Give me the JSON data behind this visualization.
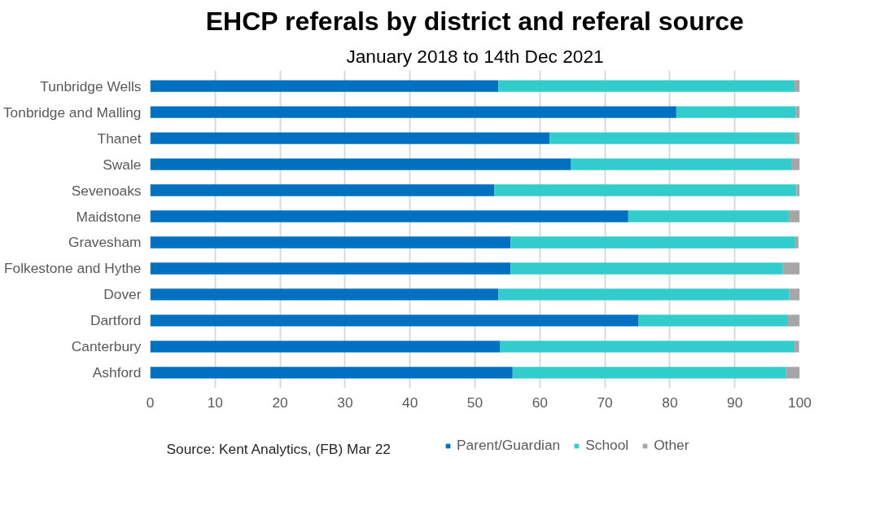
{
  "chart_data": {
    "type": "bar",
    "orientation": "horizontal",
    "stacked": true,
    "title": "EHCP referals by district and referal source",
    "subtitle": "January 2018 to 14th Dec 2021",
    "categories": [
      "Tunbridge Wells",
      "Tonbridge and Malling",
      "Thanet",
      "Swale",
      "Sevenoaks",
      "Maidstone",
      "Gravesham",
      "Folkestone and Hythe",
      "Dover",
      "Dartford",
      "Canterbury",
      "Ashford"
    ],
    "series": [
      {
        "name": "Parent/Guardian",
        "color": "#0070c0",
        "values": [
          53.6,
          81.0,
          61.5,
          64.8,
          53.0,
          73.6,
          55.5,
          55.5,
          53.6,
          75.2,
          53.9,
          55.8
        ]
      },
      {
        "name": "School",
        "color": "#33cccc",
        "values": [
          45.6,
          18.4,
          37.8,
          34.0,
          46.5,
          24.7,
          43.8,
          41.9,
          44.8,
          23.0,
          45.3,
          42.1
        ]
      },
      {
        "name": "Other",
        "color": "#a6a6a6",
        "values": [
          0.8,
          0.6,
          0.7,
          1.2,
          0.5,
          1.7,
          0.5,
          2.6,
          1.6,
          1.8,
          0.7,
          2.1
        ]
      }
    ],
    "xlim": [
      0,
      100
    ],
    "xticks": [
      0,
      10,
      20,
      30,
      40,
      50,
      60,
      70,
      80,
      90,
      100
    ],
    "grid": "x",
    "legend": "bottom",
    "annotations": [
      "Source: Kent Analytics, (FB) Mar 22"
    ]
  }
}
